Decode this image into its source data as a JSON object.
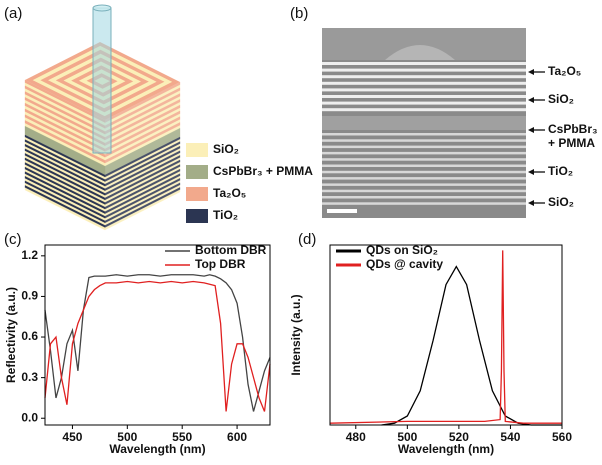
{
  "panel_a": {
    "label": "(a)",
    "legend": [
      {
        "text": "SiO₂",
        "color": "#fbefb8"
      },
      {
        "text": "CsPbBr₃ + PMMA",
        "color": "#a3ad88"
      },
      {
        "text": "Ta₂O₅",
        "color": "#f2a98c"
      },
      {
        "text": "TiO₂",
        "color": "#2b3552"
      }
    ]
  },
  "panel_b": {
    "label": "(b)",
    "labels": [
      [
        "Ta₂O₅"
      ],
      [
        "SiO₂"
      ],
      [
        "CsPbBr₃",
        "+ PMMA"
      ],
      [
        "TiO₂"
      ],
      [
        "SiO₂"
      ]
    ]
  },
  "chart_data": [
    {
      "type": "line",
      "label": "(c)",
      "x_label": "Wavelength (nm)",
      "y_label": "Reflectivity (a.u.)",
      "xlim": [
        425,
        630
      ],
      "ylim": [
        -0.05,
        1.28
      ],
      "xticks": [
        450,
        500,
        550,
        600
      ],
      "yticks": [
        {
          "value": 0,
          "label": "0.0"
        },
        0.3,
        0.6,
        0.9,
        1.2
      ],
      "legend": "upper right",
      "x": [
        425,
        430,
        435,
        440,
        445,
        450,
        455,
        460,
        465,
        470,
        475,
        480,
        490,
        500,
        510,
        520,
        530,
        540,
        550,
        560,
        570,
        575,
        580,
        585,
        590,
        595,
        600,
        605,
        610,
        615,
        620,
        625,
        630
      ],
      "series": [
        {
          "name": "Bottom DBR",
          "color": "#444444",
          "values": [
            0.8,
            0.5,
            0.15,
            0.3,
            0.55,
            0.65,
            0.35,
            0.8,
            1.04,
            1.05,
            1.05,
            1.05,
            1.06,
            1.05,
            1.06,
            1.06,
            1.05,
            1.06,
            1.06,
            1.06,
            1.05,
            1.06,
            1.05,
            1.03,
            1.0,
            0.95,
            0.85,
            0.6,
            0.25,
            0.05,
            0.2,
            0.35,
            0.45
          ]
        },
        {
          "name": "Top DBR",
          "color": "#e02020",
          "values": [
            0.15,
            0.55,
            0.6,
            0.3,
            0.1,
            0.55,
            0.7,
            0.8,
            0.9,
            0.95,
            0.98,
            1.0,
            1.0,
            1.01,
            1.0,
            1.01,
            1.0,
            1.01,
            1.0,
            1.01,
            1.0,
            0.99,
            0.98,
            0.7,
            0.05,
            0.4,
            0.55,
            0.55,
            0.45,
            0.3,
            0.15,
            0.05,
            0.4
          ]
        }
      ]
    },
    {
      "type": "line",
      "label": "(d)",
      "x_label": "Wavelength (nm)",
      "y_label": "Intensity (a.u.)",
      "xlim": [
        470,
        560
      ],
      "ylim": [
        0,
        1
      ],
      "xticks": [
        480,
        500,
        520,
        540,
        560
      ],
      "legend": "upper left",
      "series": [
        {
          "name": "QDs on SiO₂",
          "color": "#000000",
          "x": [
            490,
            495,
            500,
            505,
            510,
            515,
            519,
            523,
            528,
            533,
            538,
            543,
            548,
            555,
            560
          ],
          "values": [
            0.0,
            0.01,
            0.05,
            0.19,
            0.47,
            0.78,
            0.88,
            0.78,
            0.47,
            0.19,
            0.05,
            0.01,
            0.0,
            0.0,
            0.0
          ]
        },
        {
          "name": "QDs @ cavity",
          "color": "#e02020",
          "x": [
            470,
            500,
            530,
            536,
            536.5,
            537,
            537.5,
            538,
            545,
            560
          ],
          "values": [
            0.01,
            0.02,
            0.02,
            0.03,
            0.3,
            0.97,
            0.3,
            0.02,
            0.01,
            0.01
          ]
        }
      ]
    }
  ]
}
